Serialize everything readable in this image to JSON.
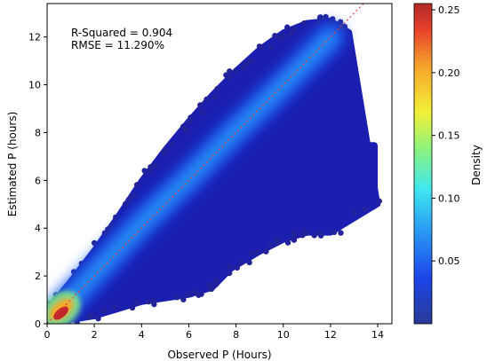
{
  "chart_data": {
    "type": "scatter",
    "title": "",
    "xlabel": "Observed P (Hours)",
    "ylabel": "Estimated P (hours)",
    "xlim": [
      0,
      14.6
    ],
    "ylim": [
      0,
      13.4
    ],
    "xticks": [
      0,
      2,
      4,
      6,
      8,
      10,
      12,
      14
    ],
    "yticks": [
      0,
      2,
      4,
      6,
      8,
      10,
      12
    ],
    "annotations": [
      "R-Squared = 0.904",
      "RMSE = 11.290%"
    ],
    "reference_line": {
      "style": "dotted",
      "color": "#e8413a",
      "points": [
        [
          0,
          0
        ],
        [
          13.4,
          13.4
        ]
      ]
    },
    "colorbar": {
      "label": "Density",
      "range": [
        0.0,
        0.255
      ],
      "ticks": [
        "0.05",
        "0.10",
        "0.15",
        "0.20",
        "0.25"
      ],
      "tick_values": [
        0.05,
        0.1,
        0.15,
        0.2,
        0.25
      ],
      "colormap": "jet"
    },
    "point_cloud": {
      "main_band": [
        [
          0,
          0
        ],
        [
          2,
          2.1
        ],
        [
          4,
          4.2
        ],
        [
          6,
          6.1
        ],
        [
          8,
          8.1
        ],
        [
          10,
          10.0
        ],
        [
          12,
          12.0
        ]
      ],
      "upper_envelope": [
        [
          0,
          0.6
        ],
        [
          1,
          1.8
        ],
        [
          2,
          3.1
        ],
        [
          3,
          4.5
        ],
        [
          4,
          6.0
        ],
        [
          5,
          7.3
        ],
        [
          6,
          8.5
        ],
        [
          7,
          9.6
        ],
        [
          8,
          10.6
        ],
        [
          9,
          11.5
        ],
        [
          10,
          12.2
        ],
        [
          11,
          12.6
        ],
        [
          12,
          12.7
        ],
        [
          12.8,
          12.2
        ]
      ],
      "lower_envelope": [
        [
          0,
          0
        ],
        [
          2,
          0.3
        ],
        [
          4,
          0.9
        ],
        [
          6,
          1.2
        ],
        [
          7,
          1.5
        ],
        [
          7.8,
          2.3
        ],
        [
          9,
          3.0
        ],
        [
          10,
          3.5
        ],
        [
          11,
          3.8
        ],
        [
          12,
          3.8
        ],
        [
          14,
          5.0
        ]
      ],
      "right_cluster": {
        "x_range": [
          12.2,
          14.0
        ],
        "y_range": [
          4.8,
          7.6
        ]
      },
      "peak_density_region": {
        "x_range": [
          0,
          1.2
        ],
        "y_range": [
          0,
          1.2
        ]
      }
    }
  }
}
